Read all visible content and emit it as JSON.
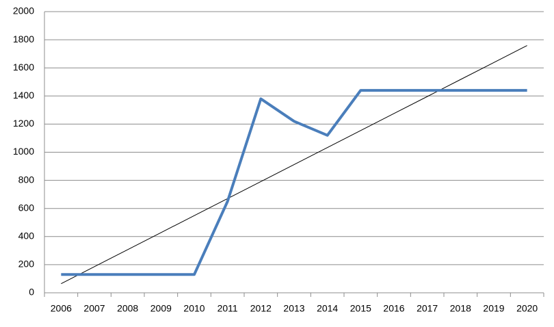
{
  "chart_data": {
    "type": "line",
    "categories": [
      "2006",
      "2007",
      "2008",
      "2009",
      "2010",
      "2011",
      "2012",
      "2013",
      "2014",
      "2015",
      "2016",
      "2017",
      "2018",
      "2019",
      "2020"
    ],
    "series": [
      {
        "color": "#4a7ebb",
        "width": 4,
        "values": [
          130,
          130,
          130,
          130,
          130,
          650,
          1380,
          1220,
          1120,
          1440,
          1440,
          1440,
          1440,
          1440,
          1440
        ]
      },
      {
        "color": "#000000",
        "width": 1,
        "values": [
          65,
          186,
          307,
          428,
          549,
          670,
          791,
          912,
          1033,
          1154,
          1275,
          1396,
          1517,
          1638,
          1759
        ]
      }
    ],
    "ylim": [
      0,
      2000
    ],
    "yticks": [
      0,
      200,
      400,
      600,
      800,
      1000,
      1200,
      1400,
      1600,
      1800,
      2000
    ],
    "grid": true
  }
}
